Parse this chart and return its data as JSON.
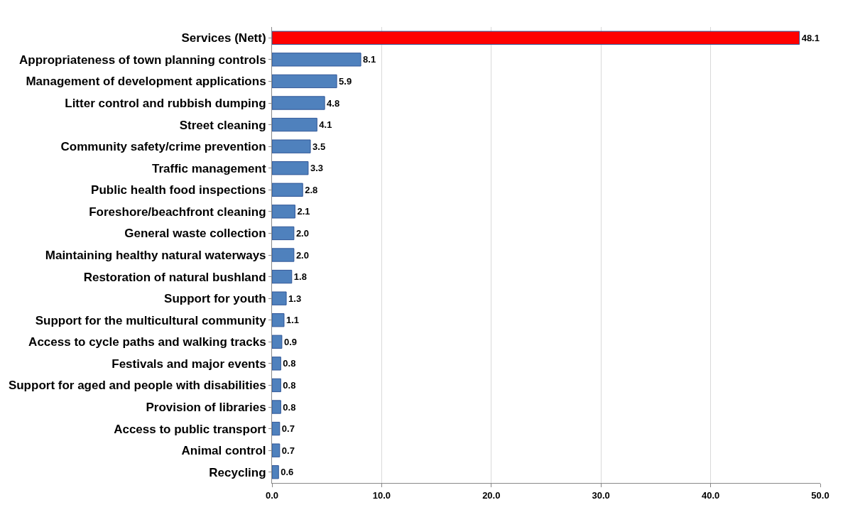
{
  "chart_data": {
    "type": "bar",
    "orientation": "horizontal",
    "categories": [
      "Services (Nett)",
      "Appropriateness of town planning controls",
      "Management of development applications",
      "Litter control and rubbish dumping",
      "Street cleaning",
      "Community safety/crime prevention",
      "Traffic management",
      "Public health food inspections",
      "Foreshore/beachfront cleaning",
      "General waste collection",
      "Maintaining healthy natural waterways",
      "Restoration of natural bushland",
      "Support for youth",
      "Support for the multicultural community",
      "Access to cycle paths and walking tracks",
      "Festivals and major events",
      "Support for aged and people with disabilities",
      "Provision of libraries",
      "Access to public transport",
      "Animal control",
      "Recycling"
    ],
    "values": [
      48.1,
      8.1,
      5.9,
      4.8,
      4.1,
      3.5,
      3.3,
      2.8,
      2.1,
      2.0,
      2.0,
      1.8,
      1.3,
      1.1,
      0.9,
      0.8,
      0.8,
      0.8,
      0.7,
      0.7,
      0.6
    ],
    "colors": [
      "#ff0000",
      "#4f81bd",
      "#4f81bd",
      "#4f81bd",
      "#4f81bd",
      "#4f81bd",
      "#4f81bd",
      "#4f81bd",
      "#4f81bd",
      "#4f81bd",
      "#4f81bd",
      "#4f81bd",
      "#4f81bd",
      "#4f81bd",
      "#4f81bd",
      "#4f81bd",
      "#4f81bd",
      "#4f81bd",
      "#4f81bd",
      "#4f81bd",
      "#4f81bd"
    ],
    "xlim": [
      0,
      50
    ],
    "xticks": [
      {
        "value": 0,
        "label": "0.0"
      },
      {
        "value": 10,
        "label": "10.0"
      },
      {
        "value": 20,
        "label": "20.0"
      },
      {
        "value": 30,
        "label": "30.0"
      },
      {
        "value": 40,
        "label": "40.0"
      },
      {
        "value": 50,
        "label": "50.0"
      }
    ],
    "value_labels": [
      "48.1",
      "8.1",
      "5.9",
      "4.8",
      "4.1",
      "3.5",
      "3.3",
      "2.8",
      "2.1",
      "2.0",
      "2.0",
      "1.8",
      "1.3",
      "1.1",
      "0.9",
      "0.8",
      "0.8",
      "0.8",
      "0.7",
      "0.7",
      "0.6"
    ],
    "grid": "x",
    "legend": false
  }
}
